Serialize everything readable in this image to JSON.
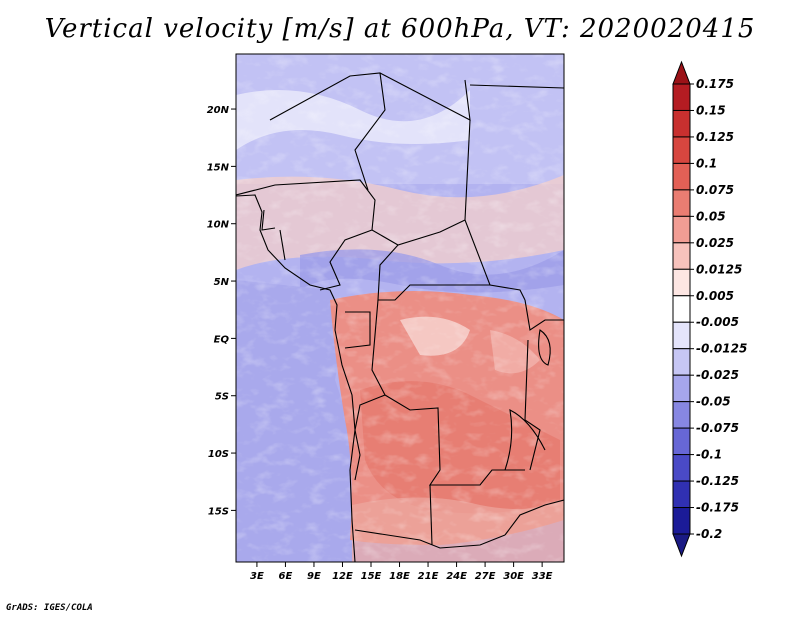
{
  "title": "Vertical velocity [m/s] at 600hPa, VT: 2020020415",
  "credit": "GrADS: IGES/COLA",
  "map": {
    "lat_labels": [
      "20N",
      "15N",
      "10N",
      "5N",
      "EQ",
      "5S",
      "10S",
      "15S"
    ],
    "lon_labels": [
      "3E",
      "6E",
      "9E",
      "12E",
      "15E",
      "18E",
      "21E",
      "24E",
      "27E",
      "30E",
      "33E"
    ],
    "lat_values": [
      20,
      15,
      10,
      5,
      0,
      -5,
      -10,
      -15
    ],
    "lon_values": [
      3,
      6,
      9,
      12,
      15,
      18,
      21,
      24,
      27,
      30,
      33
    ],
    "lat_range": [
      -19.5,
      24.8
    ],
    "lon_range": [
      0.8,
      35.3
    ]
  },
  "colorbar": {
    "labels": [
      "0.175",
      "0.15",
      "0.125",
      "0.1",
      "0.075",
      "0.05",
      "0.025",
      "0.0125",
      "0.005",
      "-0.005",
      "-0.0125",
      "-0.025",
      "-0.05",
      "-0.075",
      "-0.1",
      "-0.125",
      "-0.175",
      "-0.2"
    ],
    "colors": [
      "#9b1217",
      "#b41c22",
      "#c8302f",
      "#d7463f",
      "#e36056",
      "#ea7d72",
      "#f19d94",
      "#f7c2bc",
      "#fde6e3",
      "#ffffff",
      "#e4e4fb",
      "#c6c6f4",
      "#a6a6ec",
      "#8787e2",
      "#6767d6",
      "#4a4ac6",
      "#3030b2",
      "#1b1b98",
      "#1a1a84"
    ]
  }
}
